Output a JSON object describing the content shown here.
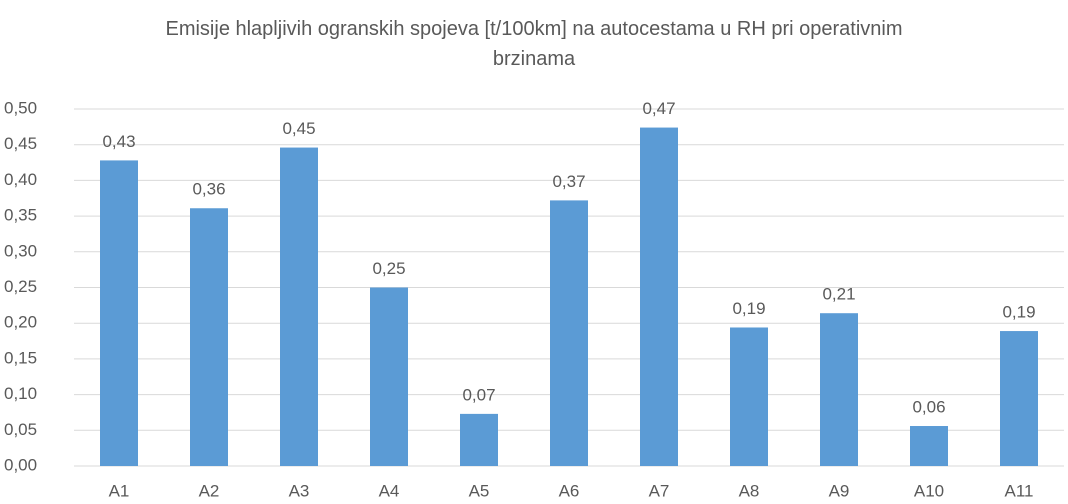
{
  "chart_data": {
    "type": "bar",
    "title": "Emisije hlapljivih ogranskih spojeva [t/100km] na autocestama u RH pri operativnim brzinama",
    "categories": [
      "A1",
      "A2",
      "A3",
      "A4",
      "A5",
      "A6",
      "A7",
      "A8",
      "A9",
      "A10",
      "A11"
    ],
    "values": [
      0.428,
      0.361,
      0.446,
      0.25,
      0.073,
      0.372,
      0.474,
      0.194,
      0.214,
      0.056,
      0.189
    ],
    "value_labels": [
      "0,43",
      "0,36",
      "0,45",
      "0,25",
      "0,07",
      "0,37",
      "0,47",
      "0,19",
      "0,21",
      "0,06",
      "0,19"
    ],
    "color": "#5b9bd5",
    "ylim": [
      0,
      0.5
    ],
    "yticks": [
      {
        "value": 0,
        "label": "0,00"
      },
      {
        "value": 0.05,
        "label": "0,05"
      },
      {
        "value": 0.1,
        "label": "0,10"
      },
      {
        "value": 0.15,
        "label": "0,15"
      },
      {
        "value": 0.2,
        "label": "0,20"
      },
      {
        "value": 0.25,
        "label": "0,25"
      },
      {
        "value": 0.3,
        "label": "0,30"
      },
      {
        "value": 0.35,
        "label": "0,35"
      },
      {
        "value": 0.4,
        "label": "0,40"
      },
      {
        "value": 0.45,
        "label": "0,45"
      },
      {
        "value": 0.5,
        "label": "0,50"
      }
    ],
    "grid": true
  }
}
